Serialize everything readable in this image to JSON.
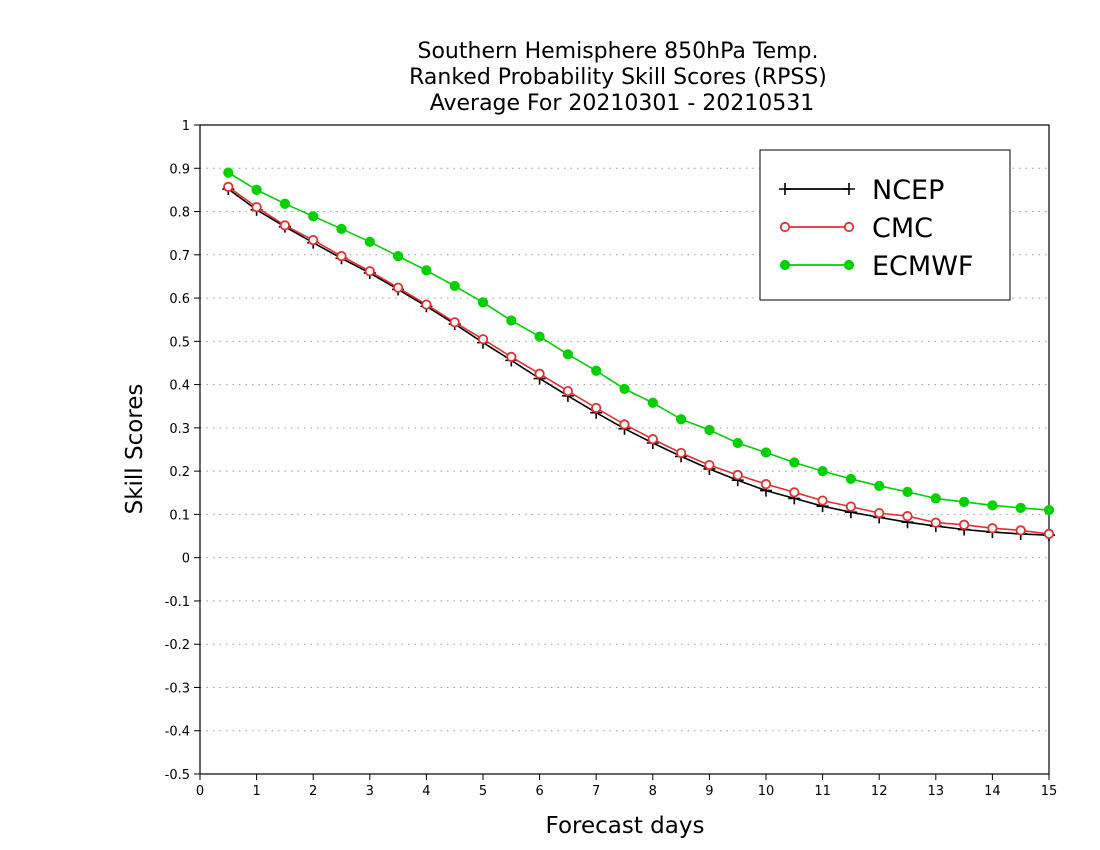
{
  "chart_data": {
    "type": "line",
    "title": [
      "Southern Hemisphere 850hPa Temp.",
      "Ranked Probability Skill Scores (RPSS)",
      "Average For 20210301 - 20210531"
    ],
    "xlabel": "Forecast days",
    "ylabel": "Skill Scores",
    "xlim": [
      0,
      15
    ],
    "ylim": [
      -0.5,
      1
    ],
    "xticks": [
      "0",
      "1",
      "2",
      "3",
      "4",
      "5",
      "6",
      "7",
      "8",
      "9",
      "10",
      "11",
      "12",
      "13",
      "14",
      "15"
    ],
    "yticks": [
      "-0.5",
      "-0.4",
      "-0.3",
      "-0.2",
      "-0.1",
      "0",
      "0.1",
      "0.2",
      "0.3",
      "0.4",
      "0.5",
      "0.6",
      "0.7",
      "0.8",
      "0.9",
      "1"
    ],
    "grid": "horizontal dotted",
    "legend_position": "top-right",
    "x": [
      0.5,
      1,
      1.5,
      2,
      2.5,
      3,
      3.5,
      4,
      4.5,
      5,
      5.5,
      6,
      6.5,
      7,
      7.5,
      8,
      8.5,
      9,
      9.5,
      10,
      10.5,
      11,
      11.5,
      12,
      12.5,
      13,
      13.5,
      14,
      14.5,
      15
    ],
    "series": [
      {
        "name": "NCEP",
        "color": "#000000",
        "marker": "plus",
        "values": [
          0.852,
          0.804,
          0.765,
          0.728,
          0.692,
          0.658,
          0.62,
          0.581,
          0.54,
          0.497,
          0.456,
          0.414,
          0.374,
          0.335,
          0.298,
          0.265,
          0.234,
          0.205,
          0.179,
          0.155,
          0.137,
          0.119,
          0.105,
          0.093,
          0.082,
          0.073,
          0.065,
          0.059,
          0.055,
          0.052
        ]
      },
      {
        "name": "CMC",
        "color": "#e03030",
        "marker": "open-circle",
        "values": [
          0.857,
          0.81,
          0.768,
          0.734,
          0.697,
          0.662,
          0.624,
          0.585,
          0.544,
          0.505,
          0.464,
          0.425,
          0.385,
          0.346,
          0.308,
          0.274,
          0.242,
          0.214,
          0.191,
          0.17,
          0.151,
          0.132,
          0.118,
          0.103,
          0.096,
          0.081,
          0.076,
          0.068,
          0.063,
          0.055
        ]
      },
      {
        "name": "ECMWF",
        "color": "#00d000",
        "marker": "filled-circle",
        "values": [
          0.89,
          0.85,
          0.818,
          0.789,
          0.76,
          0.73,
          0.697,
          0.664,
          0.628,
          0.59,
          0.548,
          0.511,
          0.47,
          0.432,
          0.39,
          0.358,
          0.32,
          0.295,
          0.265,
          0.243,
          0.22,
          0.2,
          0.182,
          0.166,
          0.152,
          0.137,
          0.129,
          0.121,
          0.115,
          0.11
        ]
      }
    ]
  }
}
